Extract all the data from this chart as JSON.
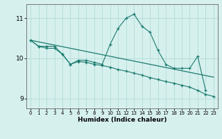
{
  "xlabel": "Humidex (Indice chaleur)",
  "bg_color": "#d6f0ee",
  "line_color": "#1a7a6e",
  "grid_color": "#aad8d3",
  "x_values": [
    0,
    1,
    2,
    3,
    4,
    5,
    6,
    7,
    8,
    9,
    10,
    11,
    12,
    13,
    14,
    15,
    16,
    17,
    18,
    19,
    20,
    21,
    22,
    23
  ],
  "y_curve1": [
    10.45,
    10.3,
    10.3,
    10.3,
    10.1,
    9.85,
    9.95,
    9.95,
    9.9,
    9.85,
    10.35,
    10.75,
    11.0,
    11.1,
    10.8,
    10.65,
    10.2,
    9.85,
    9.75,
    9.75,
    9.75,
    10.05,
    9.2,
    null
  ],
  "y_curve2": [
    10.45,
    10.3,
    10.25,
    10.25,
    10.1,
    9.85,
    9.92,
    9.9,
    9.85,
    9.82,
    9.78,
    9.72,
    9.68,
    9.63,
    9.58,
    9.52,
    9.47,
    9.42,
    9.38,
    9.33,
    9.28,
    9.2,
    9.1,
    9.05
  ],
  "y_line": [
    10.45,
    10.41,
    10.37,
    10.33,
    10.29,
    10.25,
    10.21,
    10.17,
    10.13,
    10.09,
    10.05,
    10.01,
    9.97,
    9.93,
    9.89,
    9.85,
    9.81,
    9.77,
    9.73,
    9.69,
    9.65,
    9.61,
    9.57,
    9.53
  ],
  "ylim": [
    8.75,
    11.35
  ],
  "yticks": [
    9,
    10,
    11
  ],
  "xticks": [
    0,
    1,
    2,
    3,
    4,
    5,
    6,
    7,
    8,
    9,
    10,
    11,
    12,
    13,
    14,
    15,
    16,
    17,
    18,
    19,
    20,
    21,
    22,
    23
  ]
}
